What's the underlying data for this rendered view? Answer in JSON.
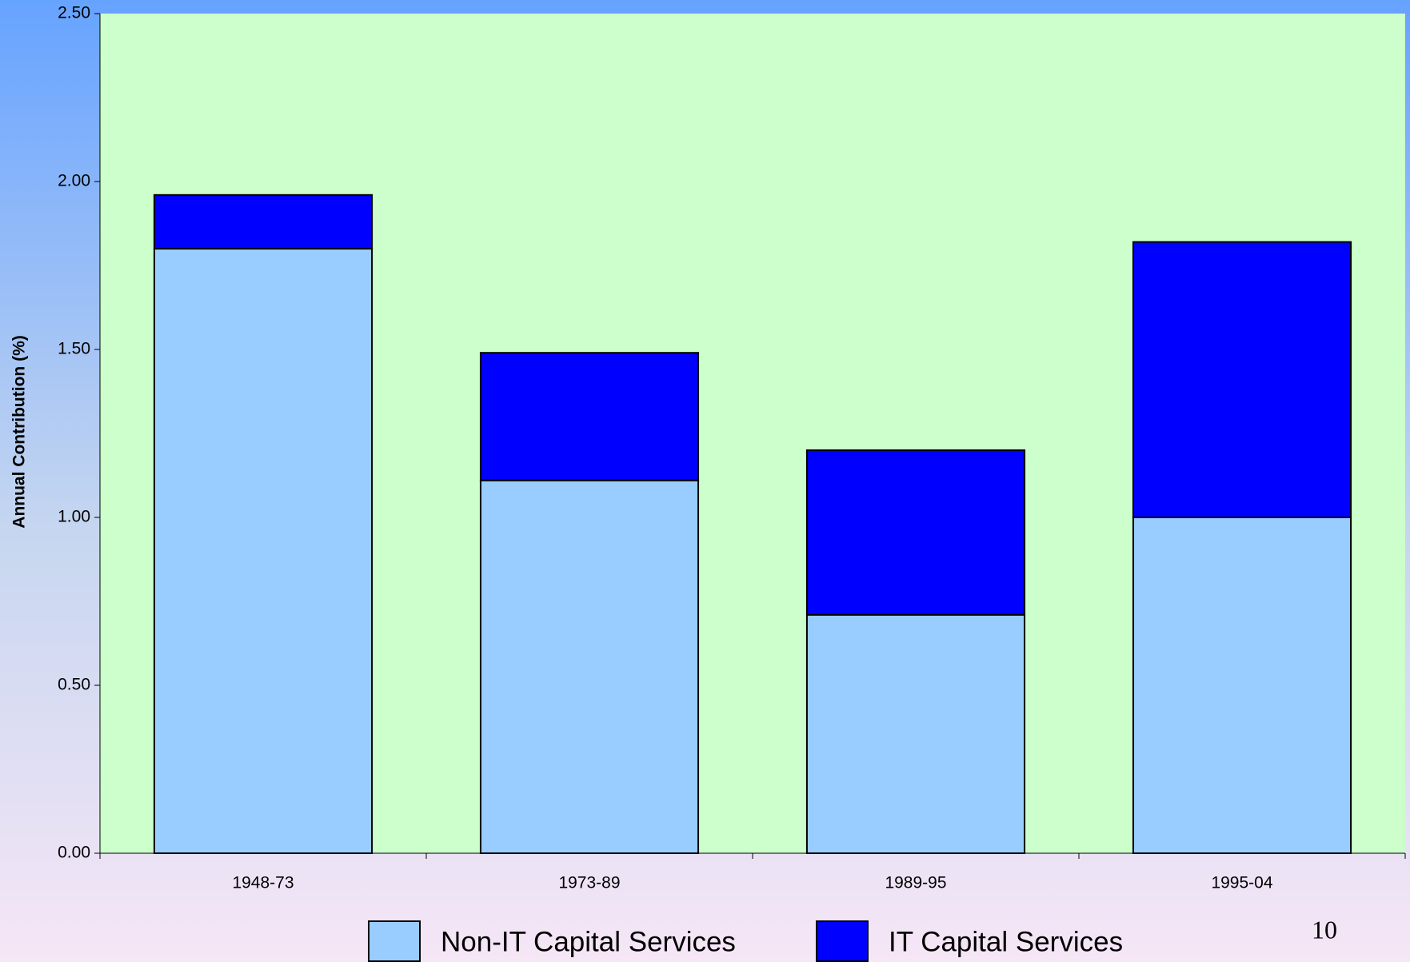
{
  "chart_data": {
    "type": "stacked_bar",
    "y_label": "Annual Contribution (%)",
    "categories": [
      "1948-73",
      "1973-89",
      "1989-95",
      "1995-04"
    ],
    "series": [
      {
        "name": "Non-IT Capital Services",
        "color": "#99ccff",
        "values": [
          1.8,
          1.11,
          0.71,
          1.0
        ]
      },
      {
        "name": "IT Capital Services",
        "color": "#0000ff",
        "values": [
          0.16,
          0.38,
          0.49,
          0.82
        ]
      }
    ],
    "ylim": [
      0,
      2.5
    ],
    "yticks": [
      {
        "value": 0,
        "label": "0.00"
      },
      {
        "value": 0.5,
        "label": "0.50"
      },
      {
        "value": 1,
        "label": "1.00"
      },
      {
        "value": 1.5,
        "label": "1.50"
      },
      {
        "value": 2,
        "label": "2.00"
      },
      {
        "value": 2.5,
        "label": "2.50"
      }
    ],
    "legend": "bottom",
    "plot_background": "#ccffcc"
  },
  "slide_number": "10"
}
